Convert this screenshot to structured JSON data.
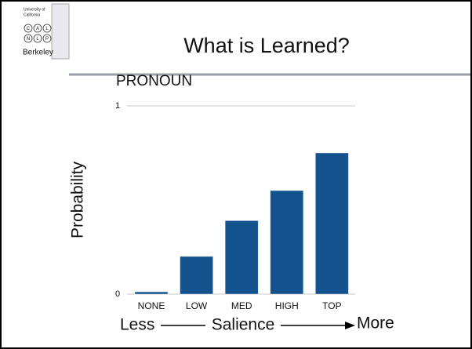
{
  "slide_title": "What is Learned?",
  "logo": {
    "lines": [
      "University of",
      "California"
    ],
    "letters": [
      "C",
      "A",
      "L",
      "N",
      "L",
      "P"
    ],
    "name": "Berkeley"
  },
  "chart_data": {
    "type": "bar",
    "title": "PRONOUN",
    "ylabel": "Probability",
    "categories": [
      "NONE",
      "LOW",
      "MED",
      "HIGH",
      "TOP"
    ],
    "values": [
      0.012,
      0.2,
      0.39,
      0.55,
      0.75
    ],
    "color": "#14538e",
    "ylim": [
      0,
      1
    ],
    "yticks": [
      0,
      1
    ],
    "grid": true,
    "xlabel": "Salience",
    "annotations": [
      "Less",
      "More"
    ]
  }
}
